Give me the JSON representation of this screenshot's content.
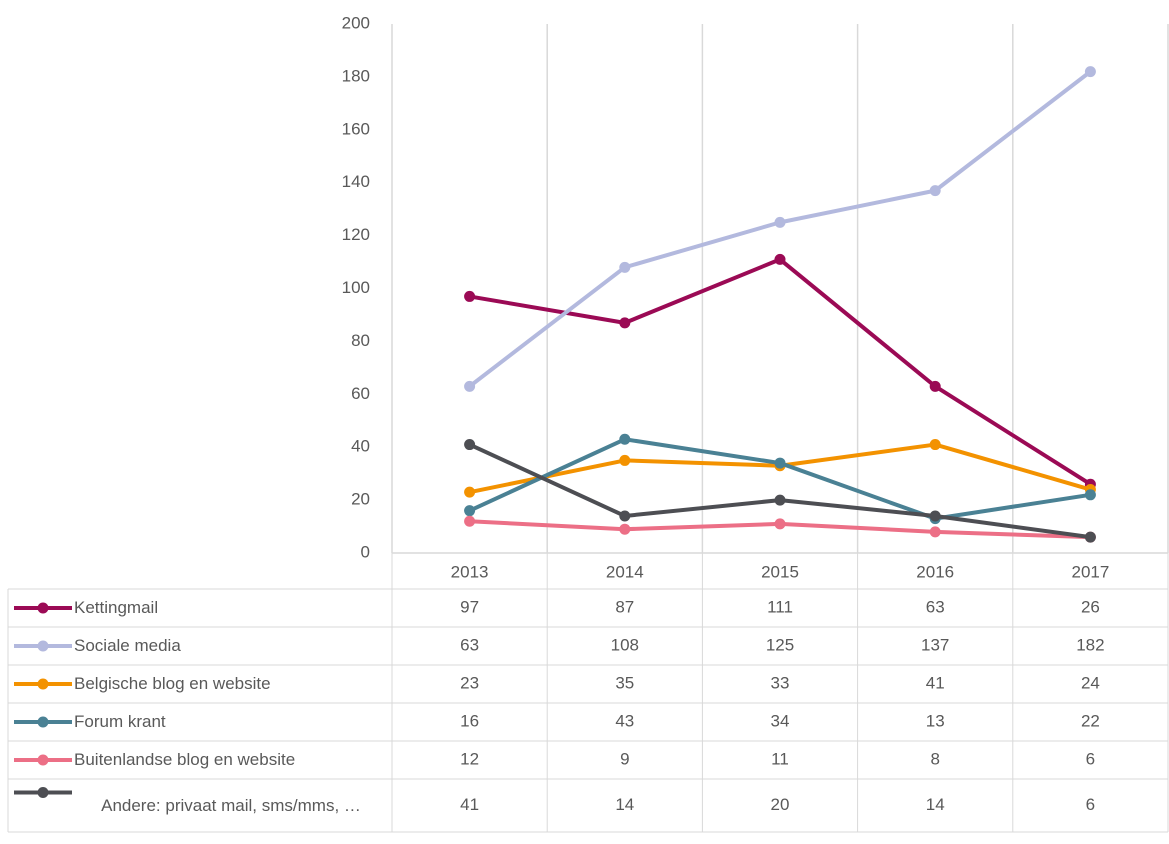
{
  "chart_data": {
    "type": "line",
    "categories": [
      "2013",
      "2014",
      "2015",
      "2016",
      "2017"
    ],
    "ylim": [
      0,
      200
    ],
    "yticks": [
      0,
      20,
      40,
      60,
      80,
      100,
      120,
      140,
      160,
      180,
      200
    ],
    "grid": true,
    "data_table": true,
    "series": [
      {
        "name": "Kettingmail",
        "color": "#9b0a55",
        "values": [
          97,
          87,
          111,
          63,
          26
        ]
      },
      {
        "name": "Sociale media",
        "color": "#b3b9de",
        "values": [
          63,
          108,
          125,
          137,
          182
        ]
      },
      {
        "name": "Belgische blog en website",
        "color": "#f39200",
        "values": [
          23,
          35,
          33,
          41,
          24
        ]
      },
      {
        "name": "Forum krant",
        "color": "#4a8194",
        "values": [
          16,
          43,
          34,
          13,
          22
        ]
      },
      {
        "name": "Buitenlandse blog en website",
        "color": "#ec6f86",
        "values": [
          12,
          9,
          11,
          8,
          6
        ]
      },
      {
        "name": "Andere: privaat mail, sms/mms, …",
        "color": "#4d4e53",
        "values": [
          41,
          14,
          20,
          14,
          6
        ]
      }
    ]
  }
}
